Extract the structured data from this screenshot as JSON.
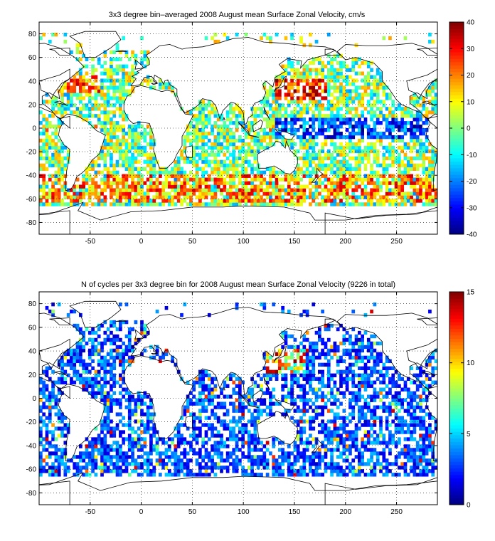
{
  "chart_data": [
    {
      "type": "heatmap",
      "title": "3x3 degree bin–averaged 2008 August mean Surface Zonal Velocity, cm/s",
      "xlim": [
        -100,
        290
      ],
      "ylim": [
        -90,
        90
      ],
      "xticks": [
        -50,
        0,
        50,
        100,
        150,
        200,
        250
      ],
      "yticks": [
        -80,
        -60,
        -40,
        -20,
        0,
        20,
        40,
        60,
        80
      ],
      "grid": true,
      "colorbar": {
        "range": [
          -40,
          40
        ],
        "ticks": [
          -40,
          -30,
          -20,
          -10,
          0,
          10,
          20,
          30,
          40
        ],
        "colormap": "jet"
      },
      "bin_size_deg": 3,
      "seed": 11,
      "field": "velocity"
    },
    {
      "type": "heatmap",
      "title": "N of cycles per 3x3 degree bin for 2008 August mean Surface Zonal Velocity (9226 in total)",
      "xlim": [
        -100,
        290
      ],
      "ylim": [
        -90,
        90
      ],
      "xticks": [
        -50,
        0,
        50,
        100,
        150,
        200,
        250
      ],
      "yticks": [
        -80,
        -60,
        -40,
        -20,
        0,
        20,
        40,
        60,
        80
      ],
      "grid": true,
      "colorbar": {
        "range": [
          0,
          15
        ],
        "ticks": [
          0,
          5,
          10,
          15
        ],
        "colormap": "jet"
      },
      "bin_size_deg": 3,
      "seed": 29,
      "field": "count"
    }
  ]
}
